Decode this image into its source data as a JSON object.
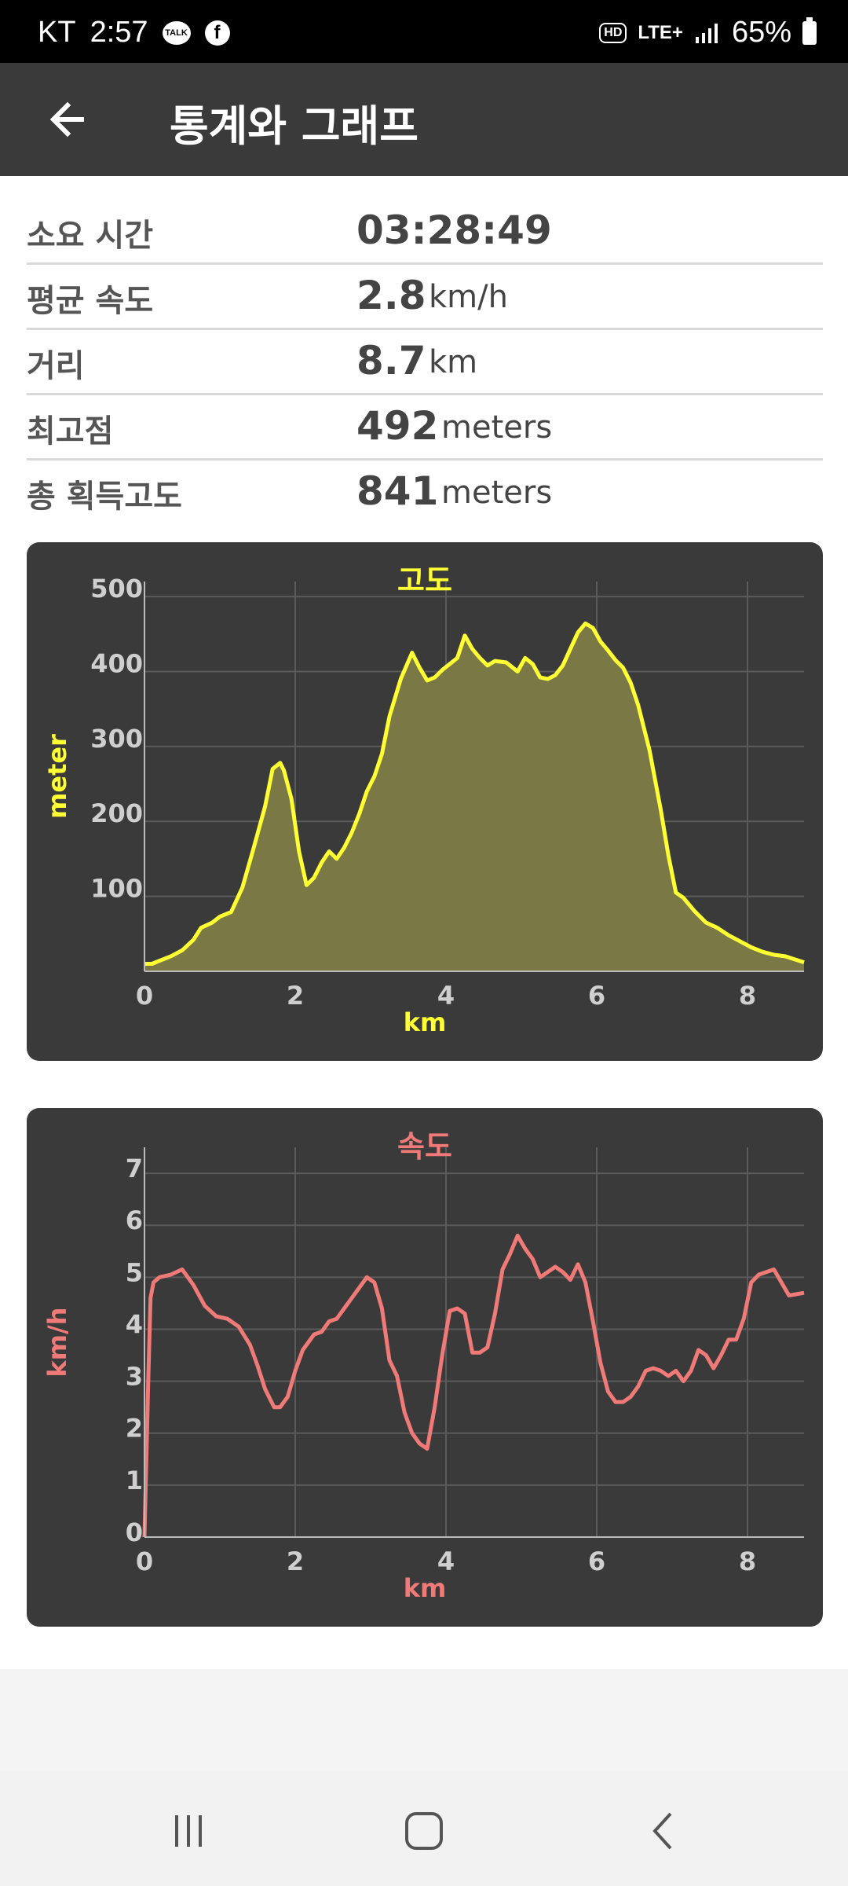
{
  "status_bar": {
    "carrier": "KT",
    "time": "2:57",
    "network": "LTE+",
    "battery": "65%",
    "icons": [
      "kakao-talk-icon",
      "facebook-icon",
      "hd-voice-icon",
      "signal-icon",
      "battery-icon"
    ]
  },
  "app_bar": {
    "title": "통계와 그래프",
    "back_icon": "arrow-left-icon"
  },
  "stats": [
    {
      "label": "소요 시간",
      "value": "03:28:49",
      "unit": ""
    },
    {
      "label": "평균 속도",
      "value": "2.8",
      "unit": "km/h"
    },
    {
      "label": "거리",
      "value": "8.7",
      "unit": "km"
    },
    {
      "label": "최고점",
      "value": "492",
      "unit": "meters"
    },
    {
      "label": "총 획득고도",
      "value": "841",
      "unit": "meters"
    }
  ],
  "chart_data": [
    {
      "type": "area",
      "title": "고도",
      "xlabel": "km",
      "ylabel": "meter",
      "xlim": [
        0,
        8.75
      ],
      "ylim": [
        0,
        520
      ],
      "xticks": [
        "0",
        "2",
        "4",
        "6",
        "8"
      ],
      "yticks": [
        "100",
        "200",
        "300",
        "400",
        "500"
      ],
      "grid": true,
      "color": "#ffff33",
      "fill": "#7a7845",
      "series": [
        {
          "x": [
            0,
            0.1,
            0.2,
            0.35,
            0.5,
            0.65,
            0.75,
            0.9,
            1.0,
            1.15,
            1.3,
            1.45,
            1.6,
            1.7,
            1.8,
            1.85,
            1.95,
            2.05,
            2.15,
            2.25,
            2.35,
            2.45,
            2.55,
            2.65,
            2.75,
            2.85,
            2.95,
            3.05,
            3.15,
            3.25,
            3.4,
            3.55,
            3.65,
            3.75,
            3.85,
            3.95,
            4.05,
            4.15,
            4.25,
            4.35,
            4.45,
            4.55,
            4.65,
            4.8,
            4.95,
            5.05,
            5.15,
            5.25,
            5.35,
            5.45,
            5.55,
            5.65,
            5.75,
            5.85,
            5.95,
            6.05,
            6.15,
            6.25,
            6.35,
            6.45,
            6.55,
            6.7,
            6.85,
            6.95,
            7.05,
            7.15,
            7.3,
            7.45,
            7.6,
            7.75,
            7.9,
            8.05,
            8.2,
            8.35,
            8.5,
            8.75
          ],
          "y": [
            10,
            10,
            14,
            20,
            28,
            42,
            58,
            65,
            73,
            79,
            112,
            165,
            220,
            270,
            278,
            268,
            230,
            160,
            115,
            125,
            145,
            160,
            150,
            165,
            185,
            210,
            240,
            260,
            290,
            340,
            390,
            425,
            405,
            388,
            392,
            402,
            410,
            418,
            448,
            430,
            418,
            408,
            414,
            412,
            400,
            418,
            410,
            392,
            390,
            395,
            408,
            430,
            452,
            464,
            458,
            440,
            428,
            415,
            405,
            385,
            355,
            295,
            215,
            155,
            105,
            98,
            80,
            65,
            58,
            48,
            40,
            32,
            26,
            22,
            20,
            12
          ]
        }
      ]
    },
    {
      "type": "line",
      "title": "속도",
      "xlabel": "km",
      "ylabel": "km/h",
      "xlim": [
        0,
        8.75
      ],
      "ylim": [
        0,
        7.5
      ],
      "xticks": [
        "0",
        "2",
        "4",
        "6",
        "8"
      ],
      "yticks": [
        "0",
        "1",
        "2",
        "3",
        "4",
        "5",
        "6",
        "7"
      ],
      "grid": true,
      "color": "#f07a78",
      "series": [
        {
          "x": [
            0,
            0.05,
            0.08,
            0.12,
            0.2,
            0.35,
            0.5,
            0.65,
            0.8,
            0.95,
            1.1,
            1.25,
            1.4,
            1.5,
            1.6,
            1.72,
            1.8,
            1.9,
            2.0,
            2.1,
            2.25,
            2.35,
            2.45,
            2.55,
            2.65,
            2.75,
            2.85,
            2.95,
            3.05,
            3.15,
            3.25,
            3.35,
            3.45,
            3.55,
            3.65,
            3.75,
            3.85,
            3.95,
            4.05,
            4.15,
            4.25,
            4.35,
            4.45,
            4.55,
            4.65,
            4.75,
            4.85,
            4.95,
            5.05,
            5.15,
            5.25,
            5.35,
            5.45,
            5.55,
            5.65,
            5.75,
            5.85,
            5.95,
            6.05,
            6.15,
            6.25,
            6.35,
            6.45,
            6.55,
            6.65,
            6.75,
            6.85,
            6.95,
            7.05,
            7.15,
            7.25,
            7.35,
            7.45,
            7.55,
            7.65,
            7.75,
            7.85,
            7.95,
            8.05,
            8.15,
            8.25,
            8.35,
            8.45,
            8.55,
            8.75
          ],
          "y": [
            0,
            3.0,
            4.6,
            4.9,
            5.0,
            5.05,
            5.15,
            4.85,
            4.45,
            4.25,
            4.2,
            4.05,
            3.7,
            3.3,
            2.85,
            2.5,
            2.5,
            2.7,
            3.2,
            3.6,
            3.9,
            3.95,
            4.15,
            4.2,
            4.4,
            4.6,
            4.8,
            5.0,
            4.9,
            4.4,
            3.4,
            3.1,
            2.4,
            2.0,
            1.8,
            1.7,
            2.5,
            3.5,
            4.35,
            4.4,
            4.3,
            3.55,
            3.55,
            3.65,
            4.3,
            5.15,
            5.45,
            5.8,
            5.55,
            5.35,
            5.0,
            5.1,
            5.2,
            5.1,
            4.95,
            5.25,
            4.9,
            4.15,
            3.35,
            2.8,
            2.6,
            2.6,
            2.7,
            2.9,
            3.2,
            3.25,
            3.2,
            3.1,
            3.2,
            3.0,
            3.2,
            3.6,
            3.5,
            3.25,
            3.5,
            3.8,
            3.8,
            4.2,
            4.9,
            5.05,
            5.1,
            5.15,
            4.9,
            4.65,
            4.7
          ]
        }
      ]
    }
  ],
  "nav_bar": {
    "icons": [
      "recent-apps-icon",
      "home-icon",
      "back-icon"
    ]
  }
}
